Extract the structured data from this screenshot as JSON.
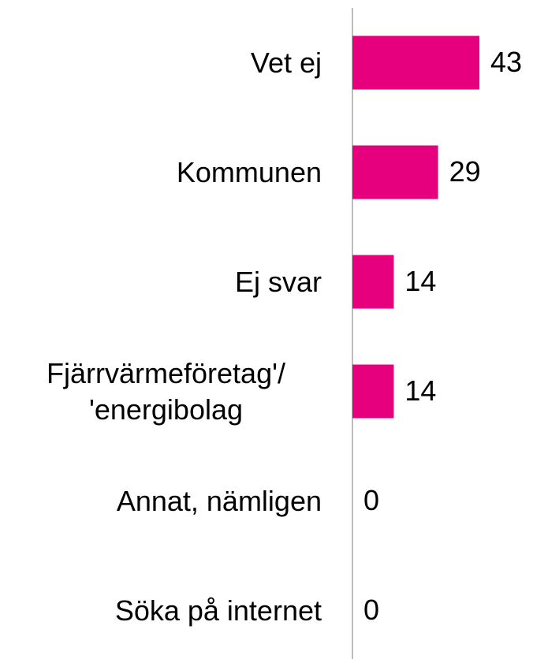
{
  "chart_data": {
    "type": "bar",
    "orientation": "horizontal",
    "categories": [
      "Vet ej",
      "Kommunen",
      "Ej svar",
      "Fjärrvärmeföretag'/ 'energibolag",
      "Annat, nämligen",
      "Söka på internet"
    ],
    "values": [
      43,
      29,
      14,
      14,
      0,
      0
    ],
    "color": "#e6007e"
  }
}
